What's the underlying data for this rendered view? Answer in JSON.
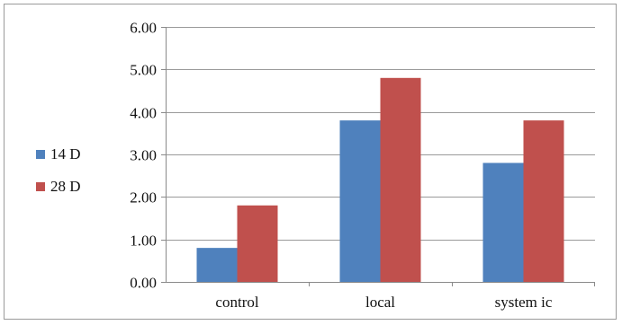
{
  "chart_data": {
    "type": "bar",
    "title": "",
    "xlabel": "",
    "ylabel": "",
    "categories": [
      "control",
      "local",
      "system ic"
    ],
    "ylim": [
      0,
      6
    ],
    "yticks": [
      "0.00",
      "1.00",
      "2.00",
      "3.00",
      "4.00",
      "5.00",
      "6.00"
    ],
    "grid": true,
    "legend_position": "left",
    "series": [
      {
        "name": "14 D",
        "color": "#4F81BD",
        "values": [
          0.8,
          3.8,
          2.8
        ]
      },
      {
        "name": "28 D",
        "color": "#C0504D",
        "values": [
          1.8,
          4.8,
          3.8
        ]
      }
    ]
  }
}
